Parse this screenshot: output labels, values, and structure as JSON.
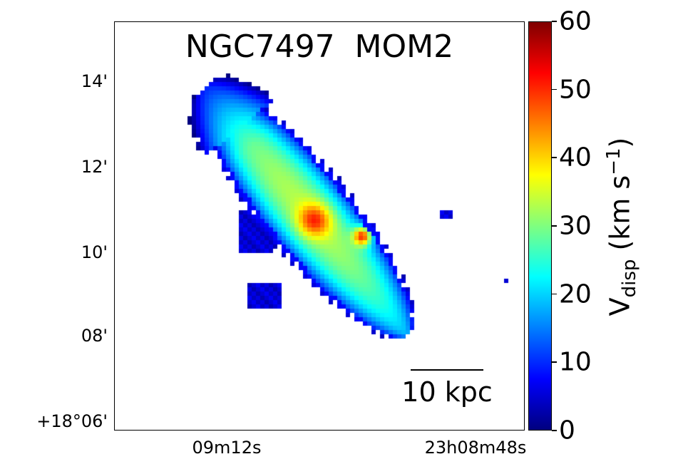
{
  "chart_data": {
    "type": "heatmap",
    "title": "NGC7497  MOM2",
    "xlabel": "",
    "ylabel": "",
    "x_tick_labels": [
      "09m12s",
      "23h08m48s"
    ],
    "y_tick_labels": [
      "14'",
      "12'",
      "10'",
      "08'",
      "+18°06'"
    ],
    "colorbar": {
      "label_main": "V",
      "label_sub": "disp",
      "label_units": " (km s",
      "label_exp": "−1",
      "label_close": ")",
      "range": [
        0,
        60
      ],
      "ticks": [
        "0",
        "10",
        "20",
        "30",
        "40",
        "50",
        "60"
      ],
      "colormap": "jet"
    },
    "scale_bar": "10 kpc",
    "features": {
      "disk_typical_value": 30,
      "edge_value": 5,
      "central_peak_value": 48,
      "secondary_peak_value": 58
    }
  }
}
